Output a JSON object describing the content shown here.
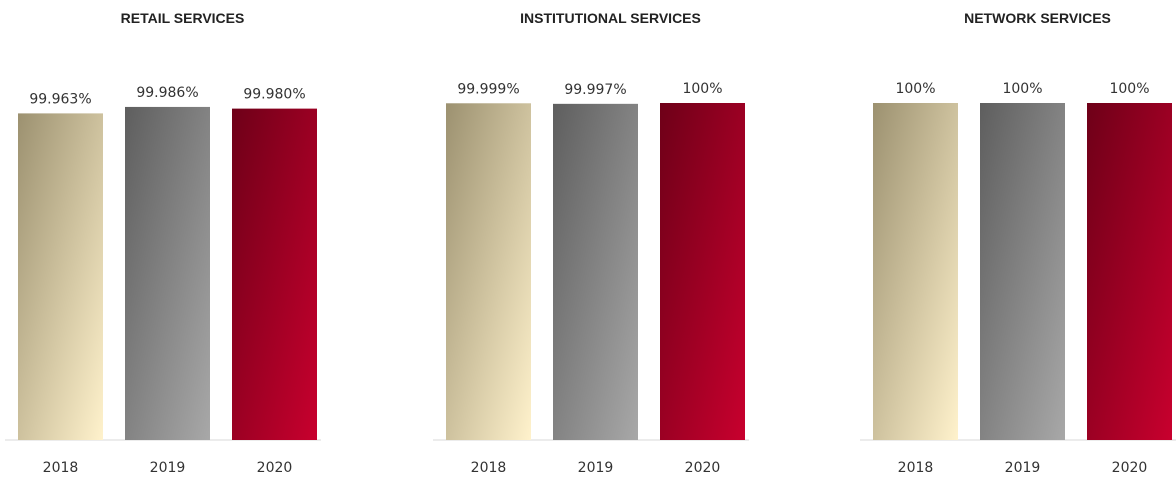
{
  "chart_data": [
    {
      "type": "bar",
      "title": "RETAIL SERVICES",
      "categories": [
        "2018",
        "2019",
        "2020"
      ],
      "values": [
        99.963,
        99.986,
        99.98
      ],
      "labels": [
        "99.963%",
        "99.986%",
        "99.980%"
      ],
      "ylim": [
        98.8,
        100.0
      ]
    },
    {
      "type": "bar",
      "title": "INSTITUTIONAL SERVICES",
      "categories": [
        "2018",
        "2019",
        "2020"
      ],
      "values": [
        99.999,
        99.997,
        100
      ],
      "labels": [
        "99.999%",
        "99.997%",
        "100%"
      ],
      "ylim": [
        98.8,
        100.0
      ]
    },
    {
      "type": "bar",
      "title": "NETWORK SERVICES",
      "categories": [
        "2018",
        "2019",
        "2020"
      ],
      "values": [
        100,
        100,
        100
      ],
      "labels": [
        "100%",
        "100%",
        "100%"
      ],
      "ylim": [
        98.8,
        100.0
      ]
    }
  ],
  "colors": {
    "2018": [
      "#9c9170",
      "#fff2cc"
    ],
    "2019": [
      "#5e5e5e",
      "#a8a8a8"
    ],
    "2020": [
      "#6e0018",
      "#c8002e"
    ],
    "axis": "#d9d9d9"
  }
}
